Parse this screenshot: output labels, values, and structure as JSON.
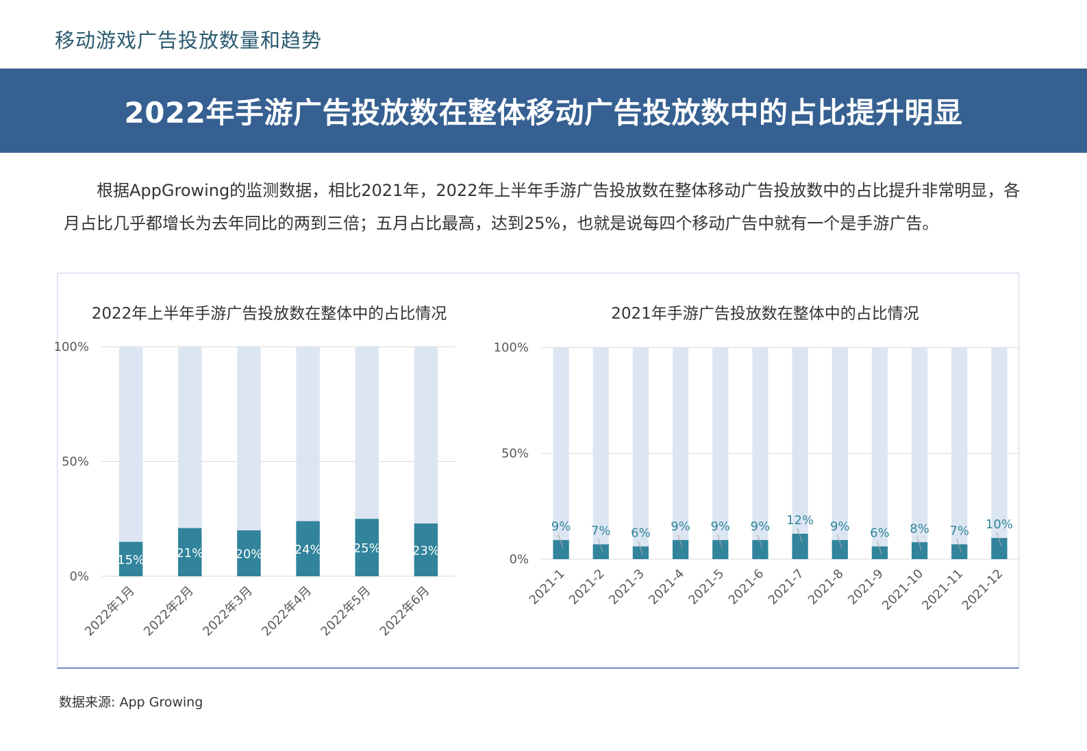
{
  "header": {
    "section_title": "移动游戏广告投放数量和趋势",
    "banner_title": "2022年手游广告投放数在整体移动广告投放数中的占比提升明显"
  },
  "intro": {
    "paragraph": "根据AppGrowing的监测数据，相比2021年，2022年上半年手游广告投放数在整体移动广告投放数中的占比提升非常明显，各月占比几乎都增长为去年同比的两到三倍；五月占比最高，达到25%，也就是说每四个移动广告中就有一个是手游广告。"
  },
  "chart_data": [
    {
      "type": "bar",
      "stacked": true,
      "title": "2022年上半年手游广告投放数在整体中的占比情况",
      "categories": [
        "2022年1月",
        "2022年2月",
        "2022年3月",
        "2022年4月",
        "2022年5月",
        "2022年6月"
      ],
      "values": [
        15,
        21,
        20,
        24,
        25,
        23
      ],
      "data_labels": [
        "15%",
        "21%",
        "20%",
        "24%",
        "25%",
        "23%"
      ],
      "background_value": 100,
      "ylim": [
        0,
        100
      ],
      "yticks": [
        "0%",
        "50%",
        "100%"
      ],
      "grid": true,
      "legend": "none",
      "colors": {
        "bar": "#31849b",
        "background": "#dce6f2",
        "label": "#ffffff"
      }
    },
    {
      "type": "bar",
      "stacked": true,
      "title": "2021年手游广告投放数在整体中的占比情况",
      "categories": [
        "2021-1",
        "2021-2",
        "2021-3",
        "2021-4",
        "2021-5",
        "2021-6",
        "2021-7",
        "2021-8",
        "2021-9",
        "2021-10",
        "2021-11",
        "2021-12"
      ],
      "values": [
        9,
        7,
        6,
        9,
        9,
        9,
        12,
        9,
        6,
        8,
        7,
        10
      ],
      "data_labels": [
        "9%",
        "7%",
        "6%",
        "9%",
        "9%",
        "9%",
        "12%",
        "9%",
        "6%",
        "8%",
        "7%",
        "10%"
      ],
      "background_value": 100,
      "ylim": [
        0,
        100
      ],
      "yticks": [
        "0%",
        "50%",
        "100%"
      ],
      "grid": true,
      "legend": "none",
      "colors": {
        "bar": "#31849b",
        "background": "#dce6f2",
        "label": "#31849b"
      }
    }
  ],
  "footer": {
    "source": "数据来源: App Growing"
  }
}
